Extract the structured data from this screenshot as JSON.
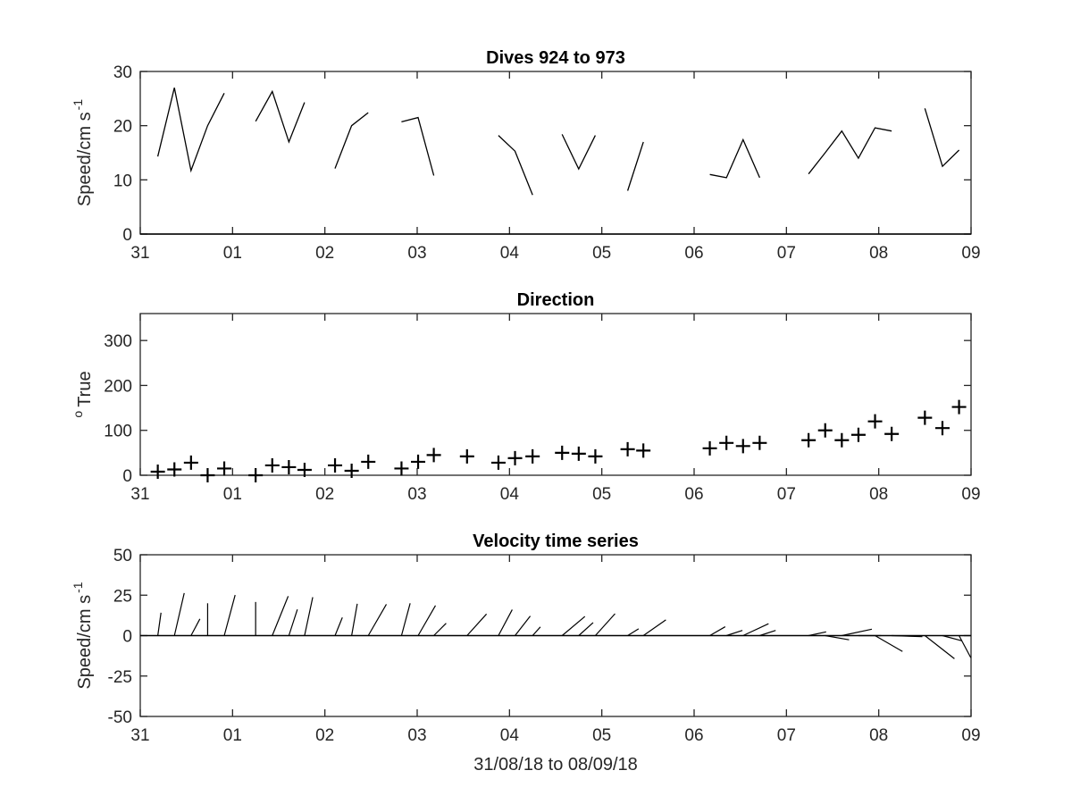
{
  "chart_data": [
    {
      "type": "line",
      "title": "Dives 924 to 973",
      "xlabel": "",
      "ylabel": "Speed/cm s",
      "ylabel_superscript": "-1",
      "xlim": [
        0,
        9
      ],
      "ylim": [
        0,
        30
      ],
      "xtick_labels": [
        "31",
        "01",
        "02",
        "03",
        "04",
        "05",
        "06",
        "07",
        "08",
        "09"
      ],
      "ytick_values": [
        0,
        10,
        20,
        30
      ],
      "segments": [
        {
          "x": [
            0.19,
            0.37,
            0.55,
            0.73,
            0.91
          ],
          "y": [
            14.3,
            27.0,
            11.7,
            20.0,
            26.0
          ]
        },
        {
          "x": [
            1.25,
            1.43,
            1.61,
            1.78
          ],
          "y": [
            20.8,
            26.3,
            17.0,
            24.3
          ]
        },
        {
          "x": [
            2.11,
            2.29,
            2.47
          ],
          "y": [
            12.1,
            20.0,
            22.4
          ]
        },
        {
          "x": [
            2.83,
            3.01,
            3.18
          ],
          "y": [
            20.7,
            21.5,
            10.8
          ]
        },
        {
          "x": [
            3.88,
            4.06,
            4.25
          ],
          "y": [
            18.2,
            15.3,
            7.2
          ]
        },
        {
          "x": [
            4.57,
            4.75,
            4.93
          ],
          "y": [
            18.4,
            12.0,
            18.2
          ]
        },
        {
          "x": [
            5.28,
            5.45
          ],
          "y": [
            8.0,
            17.0
          ]
        },
        {
          "x": [
            6.17,
            6.35,
            6.53,
            6.71
          ],
          "y": [
            11.0,
            10.4,
            17.4,
            10.4
          ]
        },
        {
          "x": [
            7.24,
            7.42,
            7.6,
            7.78,
            7.96,
            8.14
          ],
          "y": [
            11.1,
            15.0,
            19.0,
            14.0,
            19.6,
            19.0
          ]
        },
        {
          "x": [
            8.5,
            8.69,
            8.87
          ],
          "y": [
            23.2,
            12.5,
            15.5
          ]
        }
      ]
    },
    {
      "type": "scatter",
      "title": "Direction",
      "xlabel": "",
      "ylabel": "True",
      "ylabel_superscript": "o",
      "xlim": [
        0,
        9
      ],
      "ylim": [
        0,
        360
      ],
      "xtick_labels": [
        "31",
        "01",
        "02",
        "03",
        "04",
        "05",
        "06",
        "07",
        "08",
        "09"
      ],
      "ytick_values": [
        0,
        100,
        200,
        300
      ],
      "x": [
        0.19,
        0.37,
        0.55,
        0.73,
        0.91,
        1.25,
        1.43,
        1.61,
        1.78,
        2.11,
        2.29,
        2.47,
        2.83,
        3.01,
        3.18,
        3.54,
        3.88,
        4.06,
        4.25,
        4.57,
        4.75,
        4.93,
        5.28,
        5.45,
        6.17,
        6.35,
        6.53,
        6.71,
        7.24,
        7.42,
        7.6,
        7.78,
        7.96,
        8.14,
        8.5,
        8.69,
        8.87
      ],
      "y": [
        8,
        13,
        28,
        0,
        15,
        0,
        22,
        18,
        12,
        22,
        10,
        30,
        15,
        30,
        45,
        42,
        28,
        38,
        42,
        50,
        48,
        42,
        58,
        55,
        60,
        72,
        65,
        72,
        78,
        100,
        78,
        90,
        120,
        92,
        128,
        105,
        152
      ]
    },
    {
      "type": "stick",
      "title": "Velocity time series",
      "xlabel": "31/08/18 to 08/09/18",
      "ylabel": "Speed/cm s",
      "ylabel_superscript": "-1",
      "xlim": [
        0,
        9
      ],
      "ylim": [
        -50,
        50
      ],
      "xtick_labels": [
        "31",
        "01",
        "02",
        "03",
        "04",
        "05",
        "06",
        "07",
        "08",
        "09"
      ],
      "ytick_values": [
        50,
        25,
        0,
        -25,
        -50
      ],
      "ytick_labels": [
        "50",
        "25",
        "0",
        "-25",
        "-50"
      ],
      "x": [
        0.19,
        0.37,
        0.55,
        0.73,
        0.91,
        1.25,
        1.43,
        1.61,
        1.78,
        2.11,
        2.29,
        2.47,
        2.83,
        3.01,
        3.18,
        3.54,
        3.88,
        4.06,
        4.25,
        4.57,
        4.75,
        4.93,
        5.28,
        5.45,
        6.17,
        6.35,
        6.53,
        6.71,
        7.24,
        7.42,
        7.6,
        7.78,
        7.96,
        8.14,
        8.5,
        8.69,
        8.87
      ],
      "direction_deg": [
        8,
        13,
        28,
        0,
        15,
        0,
        22,
        18,
        12,
        22,
        10,
        30,
        15,
        30,
        45,
        42,
        28,
        38,
        42,
        50,
        48,
        42,
        58,
        55,
        60,
        72,
        65,
        72,
        78,
        100,
        78,
        90,
        120,
        92,
        128,
        105,
        152
      ],
      "speed": [
        14.3,
        27.0,
        11.7,
        20.0,
        26.0,
        20.8,
        26.3,
        17.0,
        24.3,
        12.1,
        20.0,
        22.4,
        20.7,
        21.5,
        10.8,
        18.0,
        18.2,
        15.3,
        7.2,
        18.4,
        12.0,
        18.2,
        8.0,
        17.0,
        11.0,
        10.4,
        17.4,
        10.4,
        11.1,
        15.0,
        19.0,
        14.0,
        19.6,
        19.0,
        23.2,
        12.5,
        15.5
      ]
    }
  ]
}
